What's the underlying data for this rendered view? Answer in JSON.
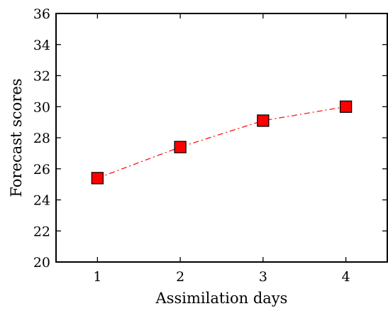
{
  "chart_data": {
    "type": "line",
    "xlabel": "Assimilation days",
    "ylabel": "Forecast scores",
    "xlim": [
      0.5,
      4.5
    ],
    "ylim": [
      20,
      36
    ],
    "xticks": [
      1,
      2,
      3,
      4
    ],
    "yticks": [
      20,
      22,
      24,
      26,
      28,
      30,
      32,
      34,
      36
    ],
    "grid": false,
    "series": [
      {
        "x": [
          1,
          2,
          3,
          4
        ],
        "values": [
          25.4,
          27.4,
          29.1,
          30.0
        ],
        "line_style": "dash-dot",
        "marker": "square",
        "color": "#ff0000",
        "marker_edge_color": "#000000"
      }
    ]
  }
}
